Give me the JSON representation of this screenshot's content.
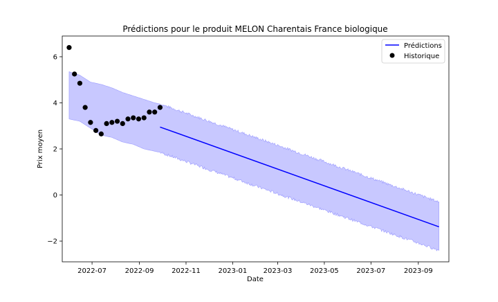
{
  "chart_data": {
    "type": "line",
    "title": "Prédictions pour le produit MELON Charentais France biologique",
    "xlabel": "Date",
    "ylabel": "Prix moyen",
    "xlim": [
      "2022-05-23",
      "2023-10-11"
    ],
    "ylim": [
      -2.9,
      6.9
    ],
    "x_ticks": [
      "2022-07",
      "2022-09",
      "2022-11",
      "2023-01",
      "2023-03",
      "2023-05",
      "2023-07",
      "2023-09"
    ],
    "x_tick_dates": [
      "2022-07-01",
      "2022-09-01",
      "2022-11-01",
      "2023-01-01",
      "2023-03-01",
      "2023-05-01",
      "2023-07-01",
      "2023-09-01"
    ],
    "y_ticks": [
      -2,
      0,
      2,
      4,
      6
    ],
    "y_tick_labels": [
      "−2",
      "0",
      "2",
      "4",
      "6"
    ],
    "legend_position": "top-right",
    "grid": false,
    "colors": {
      "prediction_line": "#0000ff",
      "interval_fill": "#c8c8ff",
      "interval_edge": "#9a9aff",
      "history_points": "#000000"
    },
    "series": [
      {
        "name": "Prédictions",
        "kind": "line",
        "x": [
          "2022-09-28",
          "2023-09-28"
        ],
        "y": [
          2.95,
          -1.38
        ]
      },
      {
        "name": "Historique",
        "kind": "scatter",
        "x": [
          "2022-06-01",
          "2022-06-08",
          "2022-06-15",
          "2022-06-22",
          "2022-06-29",
          "2022-07-06",
          "2022-07-13",
          "2022-07-20",
          "2022-07-27",
          "2022-08-03",
          "2022-08-10",
          "2022-08-17",
          "2022-08-24",
          "2022-08-31",
          "2022-09-07",
          "2022-09-14",
          "2022-09-21",
          "2022-09-28"
        ],
        "y": [
          6.4,
          5.25,
          4.85,
          3.8,
          3.15,
          2.8,
          2.65,
          3.1,
          3.15,
          3.2,
          3.1,
          3.3,
          3.35,
          3.3,
          3.35,
          3.6,
          3.6,
          3.8
        ]
      }
    ],
    "confidence_interval": {
      "x": [
        "2022-06-01",
        "2022-06-15",
        "2022-06-29",
        "2022-07-13",
        "2022-07-27",
        "2022-08-10",
        "2022-08-24",
        "2022-09-07",
        "2022-09-21",
        "2022-09-28",
        "2023-09-28"
      ],
      "lower": [
        3.3,
        3.2,
        2.9,
        2.6,
        2.5,
        2.3,
        2.2,
        2.0,
        1.9,
        1.85,
        -2.4
      ],
      "upper": [
        5.35,
        5.2,
        4.9,
        4.8,
        4.65,
        4.45,
        4.3,
        4.15,
        4.0,
        3.95,
        -0.3
      ]
    }
  }
}
